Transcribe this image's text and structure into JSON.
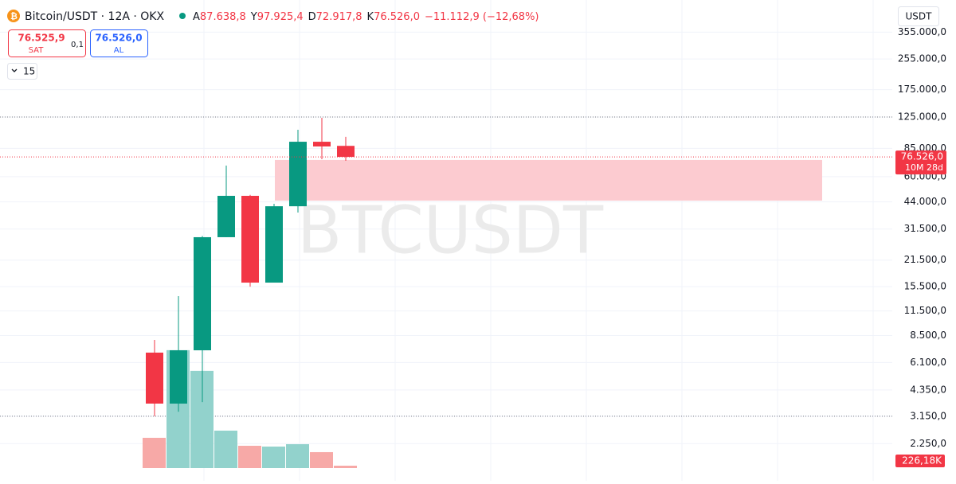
{
  "header": {
    "symbol": "Bitcoin/USDT · 12A · OKX",
    "ohlc": [
      {
        "key": "A",
        "value": "87.638,8"
      },
      {
        "key": "Y",
        "value": "97.925,4"
      },
      {
        "key": "D",
        "value": "72.917,8"
      },
      {
        "key": "K",
        "value": "76.526,0"
      }
    ],
    "change": "−11.112,9 (−12,68%)"
  },
  "order_panel": {
    "sell_price": "76.525,9",
    "sell_label": "SAT",
    "spread": "0,1",
    "buy_price": "76.526,0",
    "buy_label": "AL",
    "interval": "15"
  },
  "currency_button": "USDT",
  "chart_data": {
    "type": "candlestick",
    "watermark": "BTCUSDT",
    "log_scale": true,
    "grid": true,
    "categories": [
      null,
      null,
      null,
      null,
      null,
      null,
      null,
      null,
      null
    ],
    "up_color": "#089981",
    "down_color": "#f23645",
    "open": [
      6890,
      3680,
      7090,
      28500,
      47400,
      16300,
      41700,
      92200,
      87638.8
    ],
    "high": [
      8060,
      13800,
      28900,
      68800,
      48000,
      43000,
      106900,
      123800,
      97925.4
    ],
    "low": [
      3150,
      3330,
      3750,
      28500,
      15500,
      16500,
      38600,
      74400,
      72917.8
    ],
    "close": [
      3680,
      7090,
      28500,
      47400,
      16300,
      41700,
      92200,
      87000,
      76526.0
    ],
    "volume": {
      "values": [
        2865,
        11160,
        9200,
        3544,
        2111,
        2036,
        2262,
        1508,
        226.18
      ],
      "value_labels": [
        null,
        null,
        null,
        null,
        null,
        null,
        null,
        null,
        "226,18K"
      ],
      "up_color": "#92d2cc",
      "down_color": "#f7a9a7",
      "ylim": [
        0,
        44300
      ]
    },
    "ylim": [
      1665,
      393000
    ],
    "yticks": [
      {
        "value": 355000,
        "label": "355.000,0"
      },
      {
        "value": 255000,
        "label": "255.000,0"
      },
      {
        "value": 175000,
        "label": "175.000,0"
      },
      {
        "value": 125000,
        "label": "125.000,0"
      },
      {
        "value": 85000,
        "label": "85.000,0"
      },
      {
        "value": 60000,
        "label": "60.000,0"
      },
      {
        "value": 44000,
        "label": "44.000,0"
      },
      {
        "value": 31500,
        "label": "31.500,0"
      },
      {
        "value": 21500,
        "label": "21.500,0"
      },
      {
        "value": 15500,
        "label": "15.500,0"
      },
      {
        "value": 11500,
        "label": "11.500,0"
      },
      {
        "value": 8500,
        "label": "8.500,0"
      },
      {
        "value": 6100,
        "label": "6.100,0"
      },
      {
        "value": 4350,
        "label": "4.350,0"
      },
      {
        "value": 3150,
        "label": "3.150,0"
      },
      {
        "value": 2250,
        "label": "2.250,0"
      }
    ],
    "hlines": [
      125000,
      3150
    ],
    "zone": {
      "high": 73700,
      "low": 44700,
      "color": "#fccbd0"
    },
    "last_price": {
      "value": 76526.0,
      "label": "76.526,0",
      "countdown": "10M 28d"
    }
  }
}
